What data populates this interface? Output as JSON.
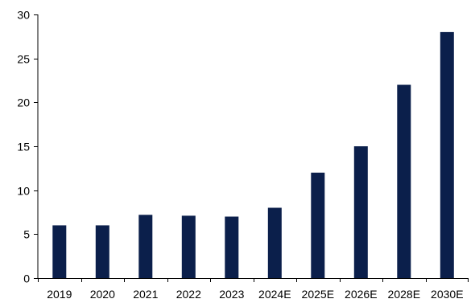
{
  "chart_data": {
    "type": "bar",
    "categories": [
      "2019",
      "2020",
      "2021",
      "2022",
      "2023",
      "2024E",
      "2025E",
      "2026E",
      "2028E",
      "2030E"
    ],
    "values": [
      6,
      6,
      7.2,
      7.1,
      7,
      8,
      12,
      15,
      22,
      28
    ],
    "title": "",
    "xlabel": "",
    "ylabel": "",
    "ylim": [
      0,
      30
    ],
    "yticks": [
      0,
      5,
      10,
      15,
      20,
      25,
      30
    ],
    "grid": false,
    "legend": "none",
    "bar_color": "#0b1f4b"
  }
}
